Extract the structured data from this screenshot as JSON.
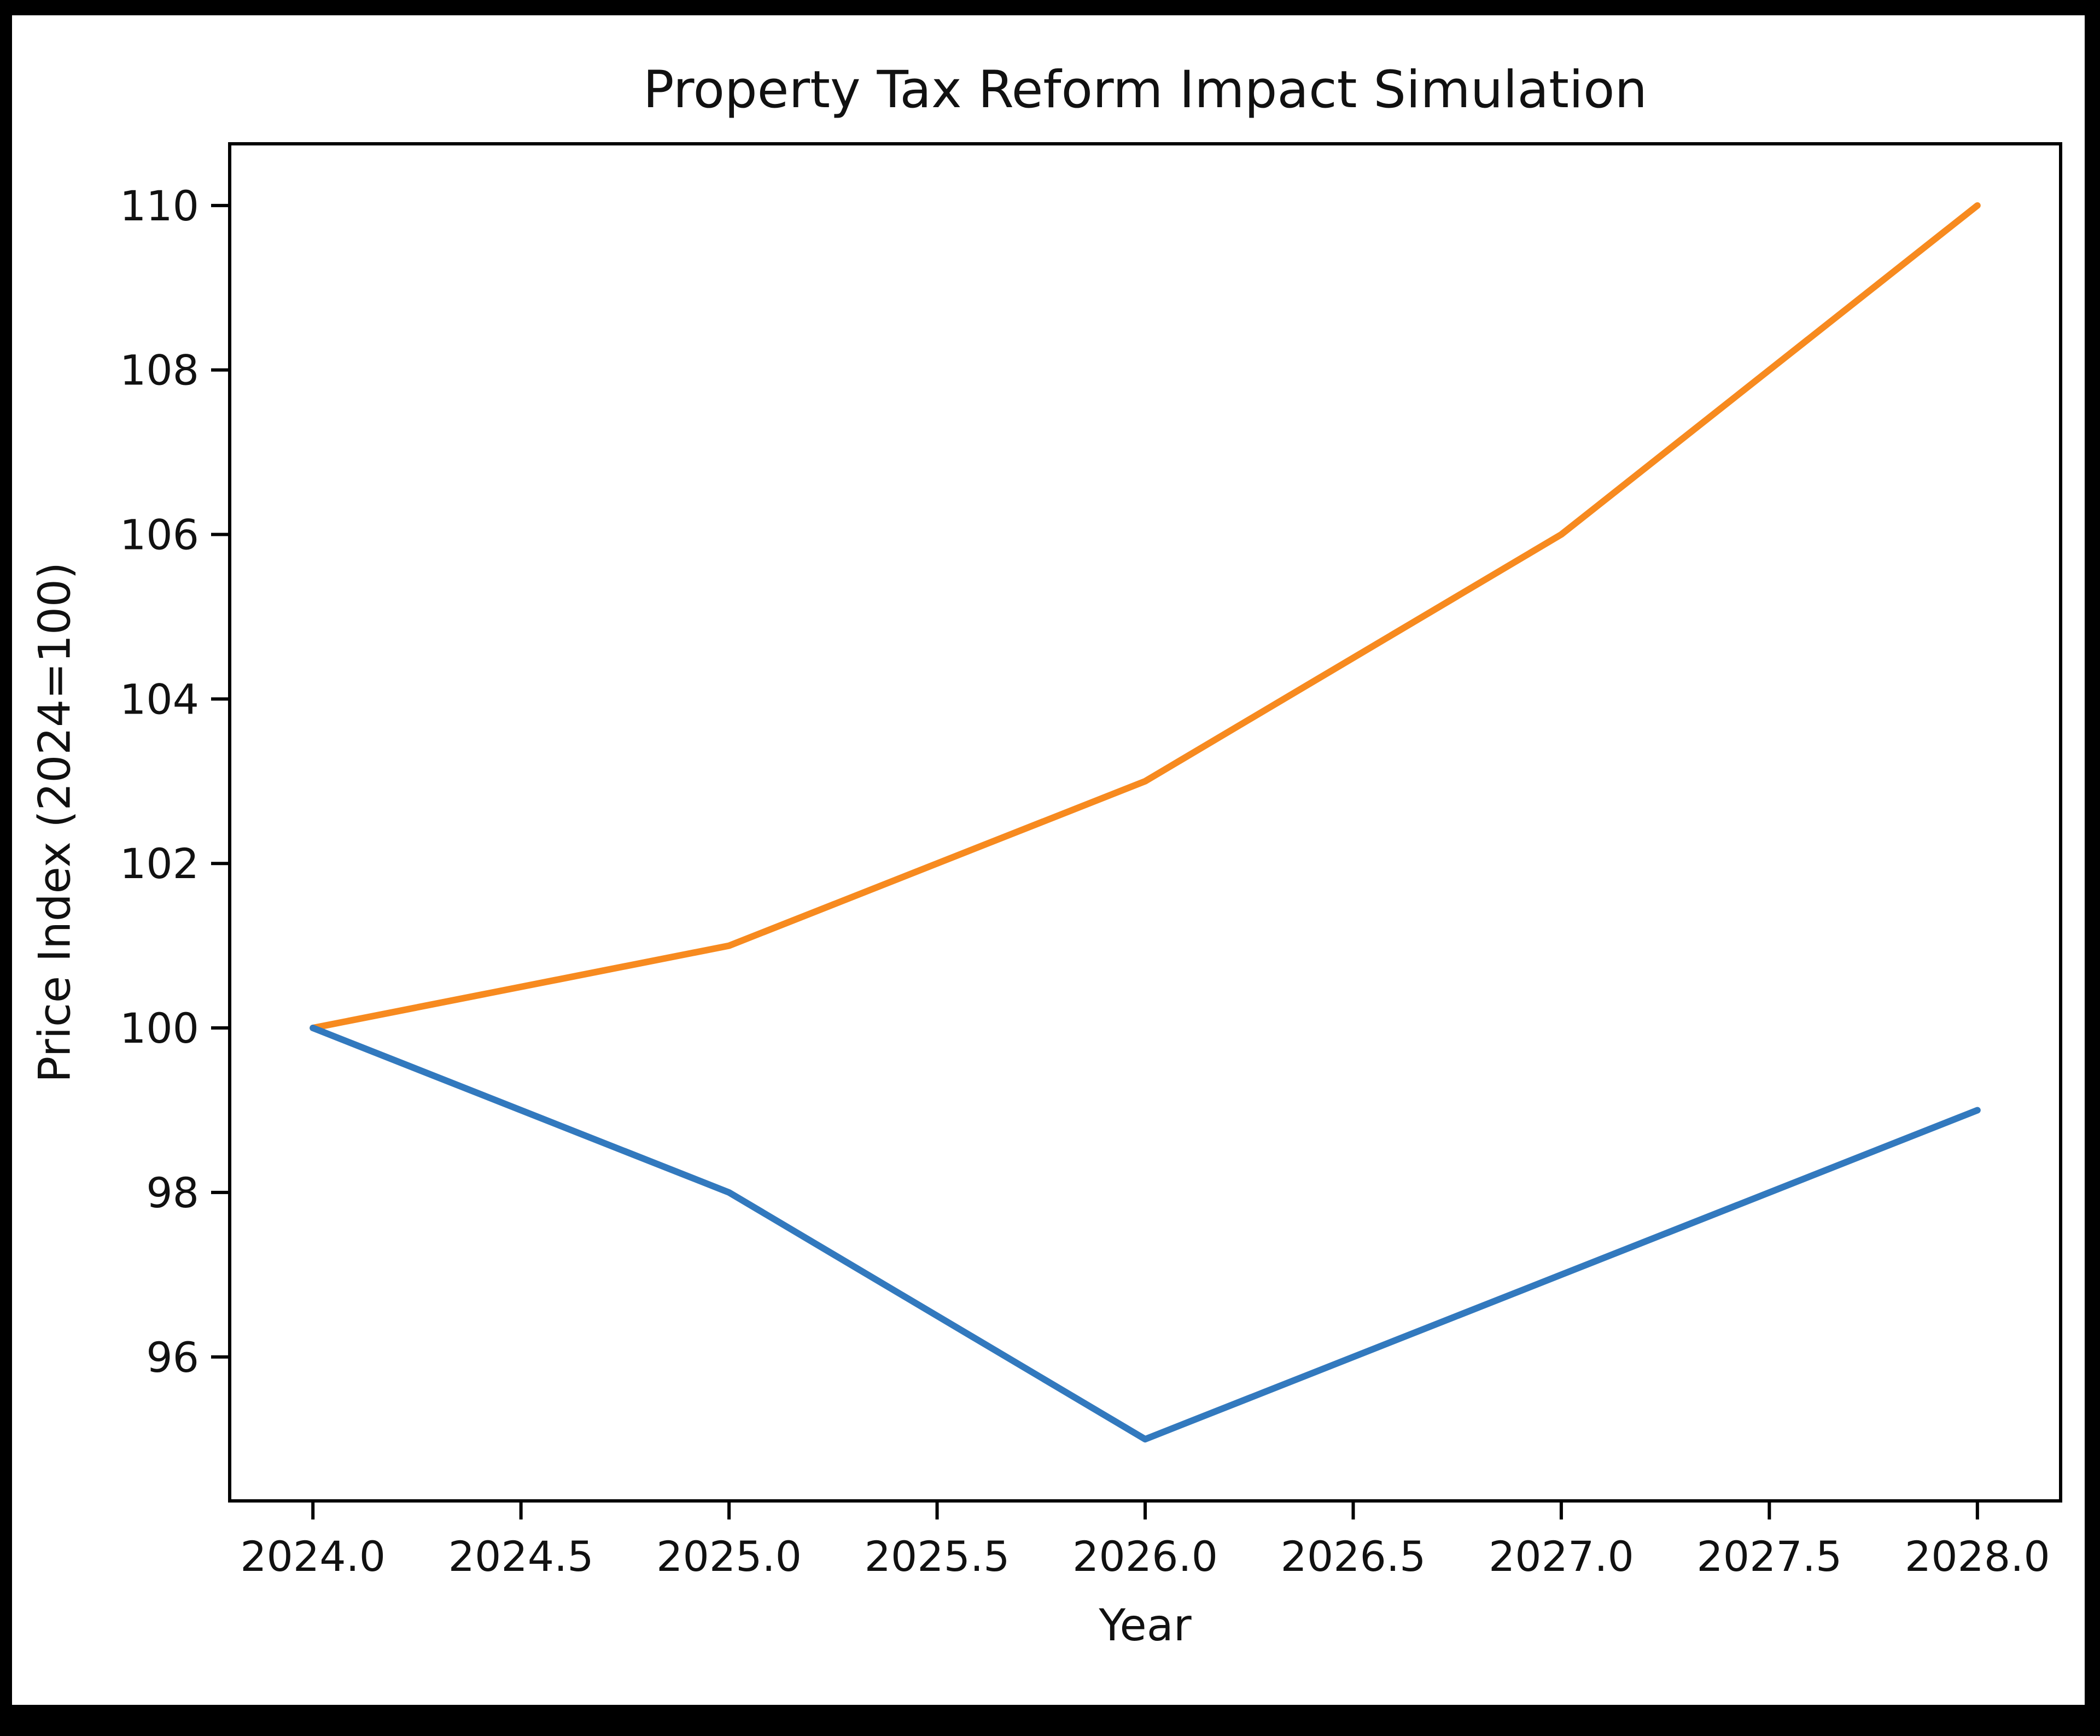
{
  "figure": {
    "background": "#ffffff",
    "frame_color": "#000000",
    "spine_color": "#000000"
  },
  "chart_data": {
    "type": "line",
    "title": "Property Tax Reform Impact Simulation",
    "xlabel": "Year",
    "ylabel": "Price Index (2024=100)",
    "x": [
      2024,
      2025,
      2026,
      2027,
      2028
    ],
    "series": [
      {
        "name": "orange-line",
        "color": "#f78a1f",
        "values": [
          100,
          101,
          103,
          106,
          110
        ]
      },
      {
        "name": "blue-line",
        "color": "#3279be",
        "values": [
          100,
          98,
          95,
          97,
          99
        ]
      }
    ],
    "xlim": [
      2023.8,
      2028.2
    ],
    "ylim": [
      94.25,
      110.75
    ],
    "x_tick_labels": [
      "2024.0",
      "2024.5",
      "2025.0",
      "2025.5",
      "2026.0",
      "2026.5",
      "2027.0",
      "2027.5",
      "2028.0"
    ],
    "x_tick_values": [
      2024,
      2024.5,
      2025,
      2025.5,
      2026,
      2026.5,
      2027,
      2027.5,
      2028
    ],
    "y_tick_labels": [
      "96",
      "98",
      "100",
      "102",
      "104",
      "106",
      "108",
      "110"
    ],
    "y_tick_values": [
      96,
      98,
      100,
      102,
      104,
      106,
      108,
      110
    ],
    "grid": false,
    "legend_position": "none",
    "line_width": 12
  }
}
